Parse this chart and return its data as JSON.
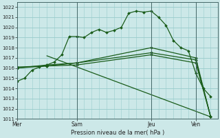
{
  "bg_color": "#cce8e8",
  "grid_color": "#99cccc",
  "line_color": "#1a5c1a",
  "marker_color": "#1a5c1a",
  "xlabel_text": "Pression niveau de la mer( hPa )",
  "ylim": [
    1011,
    1022.5
  ],
  "yticks": [
    1011,
    1012,
    1013,
    1014,
    1015,
    1016,
    1017,
    1018,
    1019,
    1020,
    1021,
    1022
  ],
  "day_labels": [
    "Mer",
    "Sam",
    "Jeu",
    "Ven"
  ],
  "day_positions": [
    0,
    8,
    18,
    24
  ],
  "xlim": [
    0,
    27
  ],
  "series": [
    {
      "x": [
        0,
        1,
        2,
        3,
        4,
        5,
        6,
        7,
        8,
        9,
        10,
        11,
        12,
        13,
        14,
        15,
        16,
        17,
        18,
        19,
        20,
        21,
        22,
        23,
        24,
        25,
        26
      ],
      "y": [
        1014.7,
        1015.0,
        1015.8,
        1016.1,
        1016.3,
        1016.6,
        1017.3,
        1019.1,
        1019.1,
        1019.0,
        1019.5,
        1019.8,
        1019.5,
        1019.7,
        1020.0,
        1021.4,
        1021.6,
        1021.5,
        1021.6,
        1021.0,
        1020.2,
        1018.7,
        1018.0,
        1017.7,
        1015.5,
        1014.0,
        1013.2
      ]
    },
    {
      "x": [
        0,
        4,
        8,
        18,
        24,
        26
      ],
      "y": [
        1016.0,
        1016.2,
        1016.5,
        1018.0,
        1017.0,
        1011.2
      ]
    },
    {
      "x": [
        0,
        4,
        8,
        18,
        24,
        26
      ],
      "y": [
        1016.0,
        1016.3,
        1016.5,
        1017.5,
        1016.8,
        1011.2
      ]
    },
    {
      "x": [
        0,
        4,
        8,
        18,
        24,
        26
      ],
      "y": [
        1016.1,
        1016.2,
        1016.3,
        1017.3,
        1016.5,
        1011.2
      ]
    },
    {
      "x": [
        4,
        26
      ],
      "y": [
        1017.2,
        1011.2
      ]
    }
  ]
}
